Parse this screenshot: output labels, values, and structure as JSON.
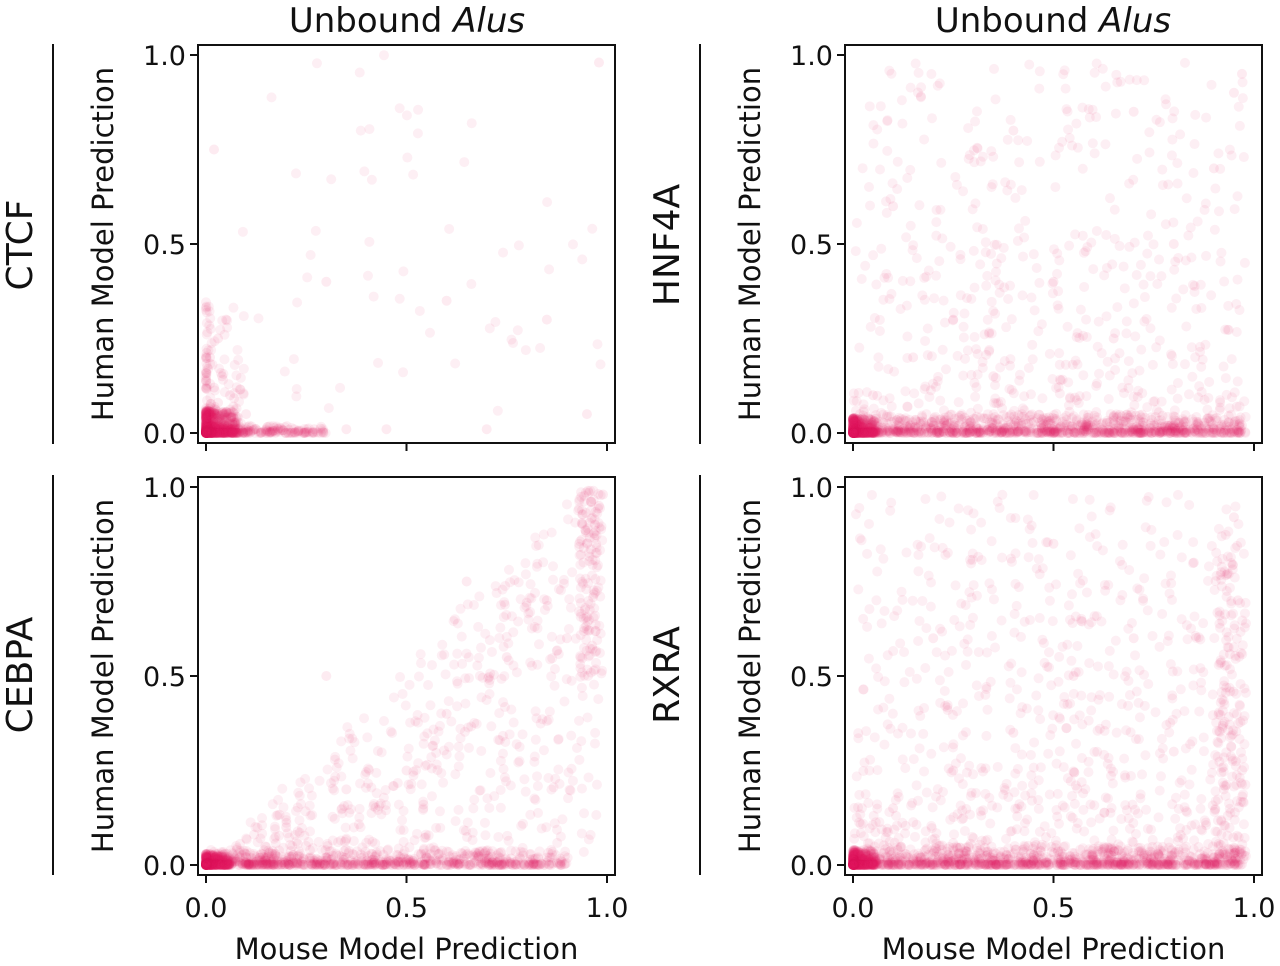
{
  "figure": {
    "column_titles": [
      {
        "prefix": "Unbound ",
        "italic": "Alus"
      },
      {
        "prefix": "Unbound ",
        "italic": "Alus"
      }
    ],
    "point_color": "#e8215f",
    "point_opacity": 0.09
  },
  "chart_data": [
    {
      "type": "scatter",
      "row_label": "CTCF",
      "column_title": "Unbound Alus",
      "xlabel": "",
      "ylabel": "Human Model Prediction",
      "xlim": [
        0,
        1
      ],
      "ylim": [
        0,
        1
      ],
      "xticks": [],
      "yticks": [
        "0.0",
        "0.5",
        "1.0"
      ],
      "x_tick_marks": [
        0,
        0.5,
        1
      ],
      "grid": false,
      "density_summary": "dense cluster near (0,0); thin tail along y≈0 out to x≈0.3; sparse points elsewhere",
      "points": [
        [
          0.01,
          0.01
        ],
        [
          0.02,
          0.02
        ],
        [
          0.03,
          0.01
        ],
        [
          0.02,
          0.04
        ],
        [
          0.04,
          0.03
        ],
        [
          0.05,
          0.02
        ],
        [
          0.01,
          0.05
        ],
        [
          0.06,
          0.01
        ],
        [
          0.08,
          0.01
        ],
        [
          0.1,
          0.01
        ],
        [
          0.12,
          0.01
        ],
        [
          0.15,
          0.01
        ],
        [
          0.18,
          0.01
        ],
        [
          0.22,
          0.01
        ],
        [
          0.27,
          0.01
        ],
        [
          0.03,
          0.08
        ],
        [
          0.02,
          0.12
        ],
        [
          0.04,
          0.15
        ],
        [
          0.01,
          0.2
        ],
        [
          0.06,
          0.1
        ],
        [
          0.03,
          0.25
        ],
        [
          0.05,
          0.3
        ],
        [
          0.1,
          0.05
        ],
        [
          0.35,
          0.01
        ],
        [
          0.45,
          0.01
        ],
        [
          0.7,
          0.01
        ],
        [
          0.95,
          0.05
        ],
        [
          0.02,
          0.75
        ],
        [
          0.98,
          0.98
        ],
        [
          0.6,
          0.35
        ],
        [
          0.3,
          0.4
        ],
        [
          0.85,
          0.3
        ]
      ]
    },
    {
      "type": "scatter",
      "row_label": "HNF4A",
      "column_title": "Unbound Alus",
      "xlabel": "",
      "ylabel": "Human Model Prediction",
      "xlim": [
        0,
        1
      ],
      "ylim": [
        0,
        1
      ],
      "xticks": [],
      "yticks": [
        "0.0",
        "0.5",
        "1.0"
      ],
      "x_tick_marks": [
        0,
        0.5,
        1
      ],
      "grid": false,
      "density_summary": "dense band along y≈0 across full x range; diffuse scatter filling the panel with density decreasing toward y=1",
      "points": [
        [
          0.01,
          0.01
        ],
        [
          0.03,
          0.02
        ],
        [
          0.05,
          0.01
        ],
        [
          0.1,
          0.01
        ],
        [
          0.2,
          0.02
        ],
        [
          0.3,
          0.01
        ],
        [
          0.4,
          0.02
        ],
        [
          0.5,
          0.01
        ],
        [
          0.6,
          0.02
        ],
        [
          0.7,
          0.01
        ],
        [
          0.8,
          0.02
        ],
        [
          0.9,
          0.01
        ],
        [
          0.97,
          0.02
        ],
        [
          0.05,
          0.1
        ],
        [
          0.15,
          0.2
        ],
        [
          0.25,
          0.3
        ],
        [
          0.35,
          0.15
        ],
        [
          0.5,
          0.4
        ],
        [
          0.65,
          0.25
        ],
        [
          0.8,
          0.5
        ],
        [
          0.95,
          0.9
        ],
        [
          0.9,
          0.7
        ],
        [
          0.1,
          0.6
        ],
        [
          0.4,
          0.8
        ],
        [
          0.7,
          0.85
        ],
        [
          0.97,
          0.95
        ]
      ]
    },
    {
      "type": "scatter",
      "row_label": "CEBPA",
      "column_title": "",
      "xlabel": "Mouse Model Prediction",
      "ylabel": "Human Model Prediction",
      "xlim": [
        0,
        1
      ],
      "ylim": [
        0,
        1
      ],
      "xticks": [
        "0.0",
        "0.5",
        "1.0"
      ],
      "yticks": [
        "0.0",
        "0.5",
        "1.0"
      ],
      "x_tick_marks": [
        0,
        0.5,
        1
      ],
      "grid": false,
      "density_summary": "dense band along y≈0; diffuse scatter increasing toward upper-right; cluster near (1,1)",
      "points": [
        [
          0.01,
          0.01
        ],
        [
          0.05,
          0.01
        ],
        [
          0.1,
          0.02
        ],
        [
          0.2,
          0.01
        ],
        [
          0.3,
          0.02
        ],
        [
          0.4,
          0.01
        ],
        [
          0.55,
          0.02
        ],
        [
          0.7,
          0.01
        ],
        [
          0.85,
          0.02
        ],
        [
          0.2,
          0.1
        ],
        [
          0.35,
          0.2
        ],
        [
          0.5,
          0.25
        ],
        [
          0.6,
          0.4
        ],
        [
          0.75,
          0.55
        ],
        [
          0.85,
          0.7
        ],
        [
          0.95,
          0.85
        ],
        [
          0.98,
          0.95
        ],
        [
          0.97,
          0.9
        ],
        [
          0.99,
          0.98
        ],
        [
          0.9,
          0.6
        ],
        [
          0.65,
          0.75
        ],
        [
          0.3,
          0.5
        ]
      ]
    },
    {
      "type": "scatter",
      "row_label": "RXRA",
      "column_title": "",
      "xlabel": "Mouse Model Prediction",
      "ylabel": "Human Model Prediction",
      "xlim": [
        0,
        1
      ],
      "ylim": [
        0,
        1
      ],
      "xticks": [
        "0.0",
        "0.5",
        "1.0"
      ],
      "yticks": [
        "0.0",
        "0.5",
        "1.0"
      ],
      "x_tick_marks": [
        0,
        0.5,
        1
      ],
      "grid": false,
      "density_summary": "dense band along y≈0 across full x range; broad diffuse scatter across the panel, denser at low y and at x≈1",
      "points": [
        [
          0.01,
          0.01
        ],
        [
          0.05,
          0.02
        ],
        [
          0.15,
          0.01
        ],
        [
          0.3,
          0.02
        ],
        [
          0.45,
          0.01
        ],
        [
          0.6,
          0.02
        ],
        [
          0.75,
          0.01
        ],
        [
          0.9,
          0.02
        ],
        [
          0.97,
          0.03
        ],
        [
          0.1,
          0.15
        ],
        [
          0.25,
          0.25
        ],
        [
          0.4,
          0.35
        ],
        [
          0.55,
          0.5
        ],
        [
          0.7,
          0.6
        ],
        [
          0.85,
          0.8
        ],
        [
          0.95,
          0.92
        ],
        [
          0.96,
          0.7
        ],
        [
          0.2,
          0.6
        ],
        [
          0.5,
          0.85
        ],
        [
          0.8,
          0.3
        ]
      ]
    }
  ]
}
